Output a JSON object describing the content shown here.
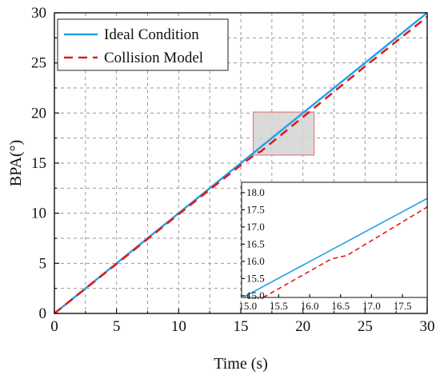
{
  "chart_data": {
    "type": "line",
    "title": "",
    "xlabel": "Time (s)",
    "ylabel": "BPA(°)",
    "xlim": [
      0,
      30
    ],
    "ylim": [
      0,
      30
    ],
    "xticks": [
      0,
      5,
      10,
      15,
      20,
      25,
      30
    ],
    "yticks": [
      0,
      5,
      10,
      15,
      20,
      25,
      30
    ],
    "grid": true,
    "legend_position": "top-left",
    "series": [
      {
        "name": "Ideal Condition",
        "color": "#1E9FE8",
        "style": "solid",
        "x": [
          0,
          30
        ],
        "y": [
          0,
          30
        ]
      },
      {
        "name": "Collision Model",
        "color": "#E01B1B",
        "style": "dashed",
        "x": [
          0,
          5,
          10,
          15,
          16.3,
          16.6,
          20,
          25,
          30
        ],
        "y": [
          0,
          4.95,
          9.9,
          14.8,
          16.0,
          16.15,
          19.6,
          24.65,
          29.6
        ]
      }
    ],
    "zoom_region": {
      "x": [
        16,
        20.9
      ],
      "y": [
        15.8,
        20.1
      ]
    },
    "inset": {
      "xlim": [
        14.9,
        17.9
      ],
      "ylim": [
        14.95,
        18.3
      ],
      "xticks": [
        "15.0",
        "15.5",
        "16.0",
        "16.5",
        "17.0",
        "17.5"
      ],
      "yticks": [
        "15.0",
        "15.5",
        "16.0",
        "16.5",
        "17.0",
        "17.5",
        "18.0"
      ],
      "series": [
        {
          "name": "Ideal Condition",
          "color": "#1E9FE8",
          "style": "solid",
          "x": [
            14.95,
            17.9
          ],
          "y": [
            14.98,
            17.83
          ]
        },
        {
          "name": "Collision Model",
          "color": "#E01B1B",
          "style": "dashed",
          "x": [
            15.25,
            16.35,
            16.6,
            17.9
          ],
          "y": [
            14.95,
            16.07,
            16.17,
            17.58
          ]
        }
      ]
    }
  }
}
